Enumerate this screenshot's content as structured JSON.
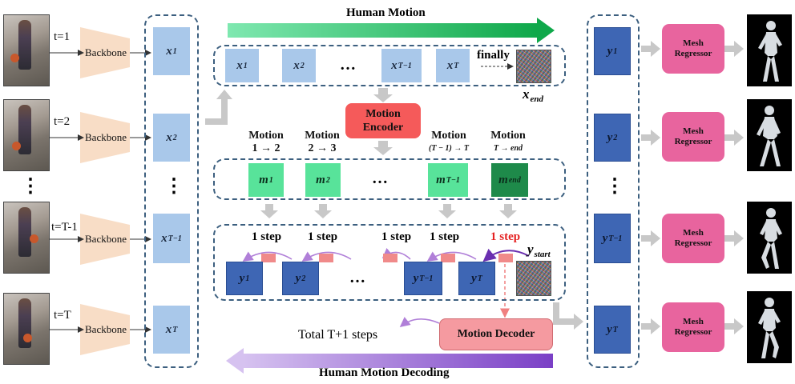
{
  "inputs": [
    {
      "t_label": "t=1"
    },
    {
      "t_label": "t=2"
    },
    {
      "t_label": "t=T-1"
    },
    {
      "t_label": "t=T"
    }
  ],
  "vdots": "⋮",
  "backbone_label": "Backbone",
  "features": {
    "x_base": "x",
    "subs": [
      "1",
      "2",
      "T−1",
      "T"
    ],
    "end_sub": "end"
  },
  "motion_row": {
    "title": "Human Motion",
    "finally": "finally",
    "ellipsis": "…"
  },
  "motion_encoder": {
    "line1": "Motion",
    "line2": "Encoder"
  },
  "motion_labels": [
    {
      "line1": "Motion",
      "line2": "1 → 2"
    },
    {
      "line1": "Motion",
      "line2": "2 → 3"
    },
    {
      "line1": "Motion",
      "line2": "(T − 1) → T"
    },
    {
      "line1": "Motion",
      "line2": "T → end"
    }
  ],
  "motion_features": {
    "m_base": "m",
    "subs": [
      "1",
      "2",
      "T−1",
      "end"
    ]
  },
  "decoding_row": {
    "step": "1 step",
    "y_base": "y",
    "y_start_sub": "start",
    "subs": [
      "1",
      "2",
      "T−1",
      "T"
    ]
  },
  "motion_decoder": "Motion Decoder",
  "total_steps": "Total T+1 steps",
  "decoding_title": "Human Motion Decoding",
  "mesh_regressor": {
    "line1": "Mesh",
    "line2": "Regressor"
  },
  "colors": {
    "frame": "#3c5f7f",
    "x_feature": "#a9c8ea",
    "y_feature": "#3e66b4",
    "motion_light": "#58e39a",
    "motion_dark": "#1e8a4a",
    "encoder": "#f55a5a",
    "decoder": "#f59aa0",
    "mesh_regressor": "#e8649e",
    "backbone": "#f8ddc6",
    "human_motion_arrow": "#2ec866",
    "decoding_arrow": "#9e6ad8",
    "red_step": "#e52222"
  }
}
